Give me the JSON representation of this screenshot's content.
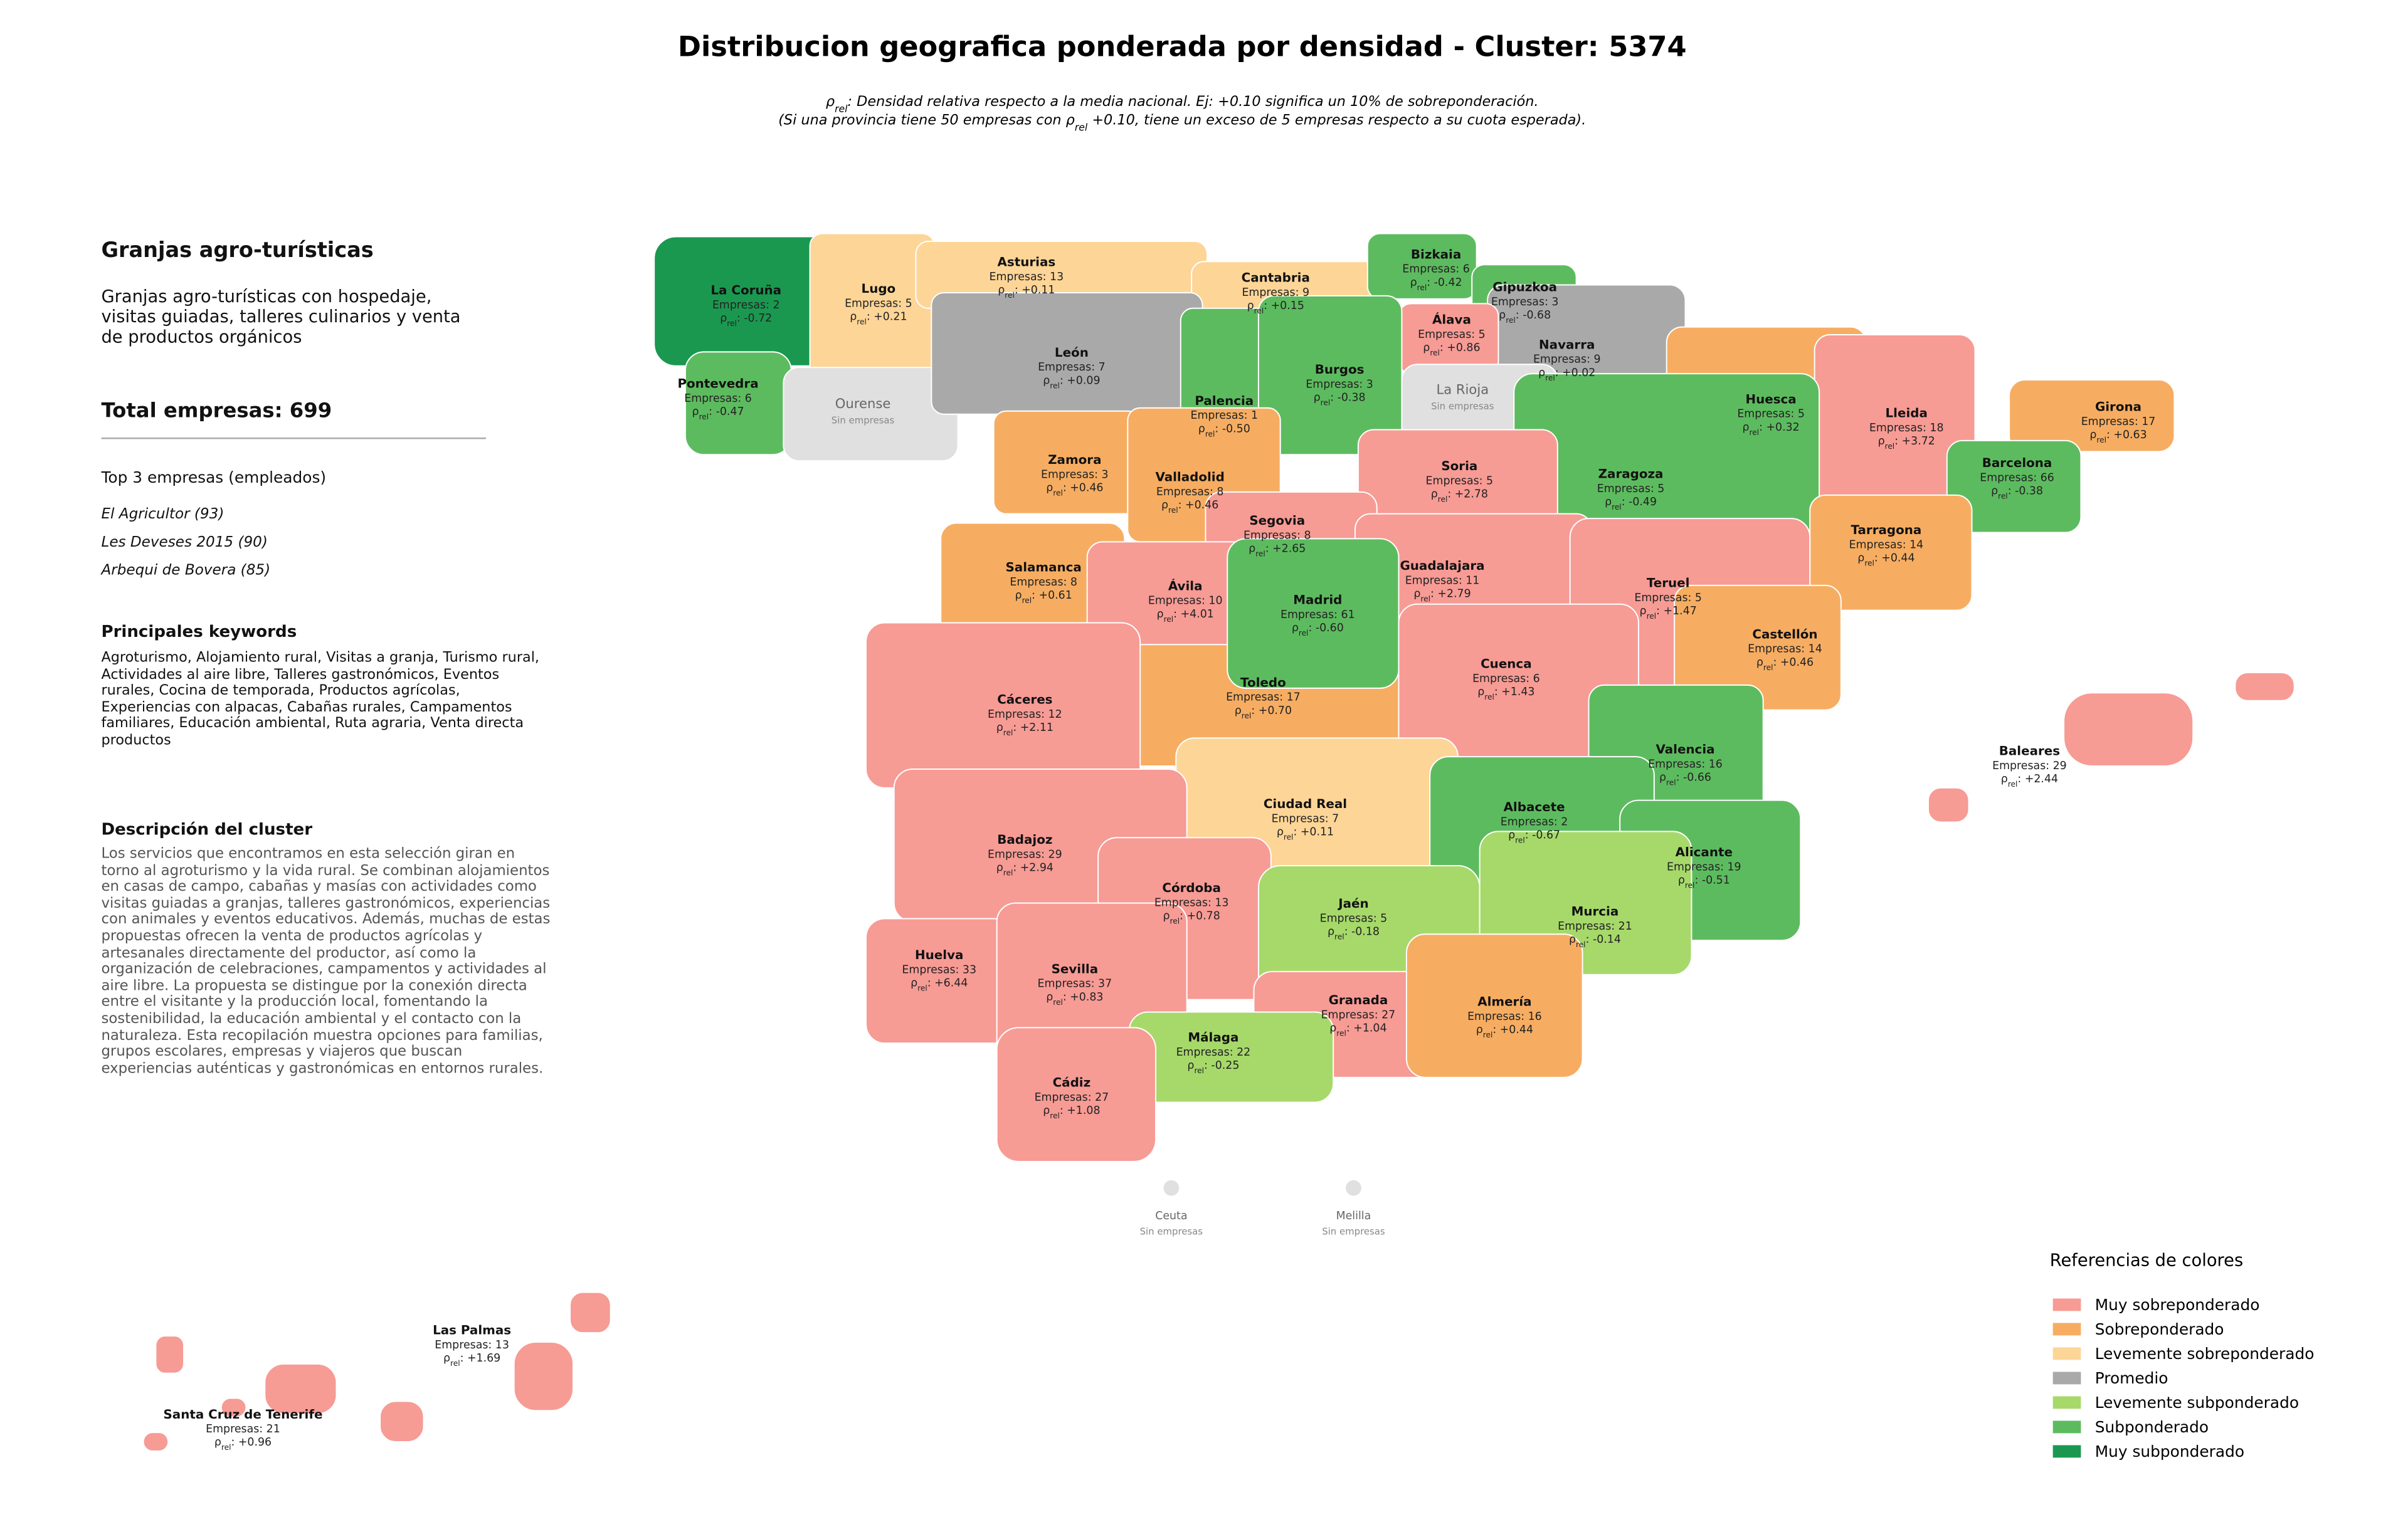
{
  "header": {
    "title": "Distribucion geografica ponderada por densidad - Cluster: 5374",
    "subtitle_lines": [
      [
        {
          "text": "ρ"
        },
        {
          "text": "rel",
          "sub": true
        },
        {
          "text": ": Densidad relativa respecto a la media nacional. Ej: +0.10 significa un 10% de sobreponderación."
        }
      ],
      [
        {
          "text": "(Si una provincia tiene 50 empresas con "
        },
        {
          "text": "ρ"
        },
        {
          "text": "rel",
          "sub": true
        },
        {
          "text": " +0.10, tiene un exceso de 5 empresas respecto a su cuota esperada)."
        }
      ]
    ]
  },
  "sidebar": {
    "cluster_name": "Granjas agro-turísticas",
    "cluster_summary": "Granjas agro-turísticas con hospedaje, visitas guiadas, talleres culinarios y venta de productos orgánicos",
    "total": "Total empresas: 699",
    "top_heading": "Top 3 empresas (empleados)",
    "top_companies": [
      "El Agricultor (93)",
      "Les Deveses 2015 (90)",
      "Arbequi de Bovera (85)"
    ],
    "keywords_heading": "Principales keywords",
    "keywords": "Agroturismo, Alojamiento rural, Visitas a granja, Turismo rural, Actividades al aire libre, Talleres gastronómicos, Eventos rurales, Cocina de temporada, Productos agrícolas, Experiencias con alpacas, Cabañas rurales, Campamentos familiares, Educación ambiental, Ruta agraria, Venta directa productos",
    "description_heading": "Descripción del cluster",
    "description": "Los servicios que encontramos en esta selección giran en torno al agroturismo y la vida rural. Se combinan alojamientos en casas de campo, cabañas y masías con actividades como visitas guiadas a granjas, talleres gastronómicos, experiencias con animales y eventos educativos. Además, muchas de estas propuestas ofrecen la venta de productos agrícolas y artesanales directamente del productor, así como la organización de celebraciones, campamentos y actividades al aire libre. La propuesta se distingue por la conexión directa entre el visitante y la producción local, fomentando la sostenibilidad, la educación ambiental y el contacto con la naturaleza. Esta recopilación muestra opciones para familias, grupos escolares, empresas y viajeros que buscan experiencias auténticas y gastronómicas en entornos rurales."
  },
  "map": {
    "rho_prefix": [
      {
        "text": "ρ"
      },
      {
        "text": "rel",
        "sub": true
      },
      {
        "text": ": "
      }
    ],
    "no_data_color": "#e0e0e0",
    "provinces": [
      {
        "name": "La Coruña",
        "empresas": "Empresas: 2",
        "rho": "-0.72",
        "category": "Muy subponderado"
      },
      {
        "name": "Lugo",
        "empresas": "Empresas: 5",
        "rho": "+0.21",
        "category": "Levemente sobreponderado"
      },
      {
        "name": "Asturias",
        "empresas": "Empresas: 13",
        "rho": "+0.11",
        "category": "Levemente sobreponderado"
      },
      {
        "name": "Cantabria",
        "empresas": "Empresas: 9",
        "rho": "+0.15",
        "category": "Levemente sobreponderado"
      },
      {
        "name": "Bizkaia",
        "empresas": "Empresas: 6",
        "rho": "-0.42",
        "category": "Subponderado"
      },
      {
        "name": "Gipuzkoa",
        "empresas": "Empresas: 3",
        "rho": "-0.68",
        "category": "Subponderado"
      },
      {
        "name": "Navarra",
        "empresas": "Empresas: 9",
        "rho": "+0.02",
        "category": "Promedio"
      },
      {
        "name": "Álava",
        "empresas": "Empresas: 5",
        "rho": "+0.86",
        "category": "Muy sobreponderado"
      },
      {
        "name": "Pontevedra",
        "empresas": "Empresas: 6",
        "rho": "-0.47",
        "category": "Subponderado"
      },
      {
        "name": "Ourense",
        "empresas": "Sin empresas",
        "rho": null,
        "category": null
      },
      {
        "name": "León",
        "empresas": "Empresas: 7",
        "rho": "+0.09",
        "category": "Promedio"
      },
      {
        "name": "Palencia",
        "empresas": "Empresas: 1",
        "rho": "-0.50",
        "category": "Subponderado"
      },
      {
        "name": "Burgos",
        "empresas": "Empresas: 3",
        "rho": "-0.38",
        "category": "Subponderado"
      },
      {
        "name": "La Rioja",
        "empresas": "Sin empresas",
        "rho": null,
        "category": null
      },
      {
        "name": "Huesca",
        "empresas": "Empresas: 5",
        "rho": "+0.32",
        "category": "Sobreponderado"
      },
      {
        "name": "Lleida",
        "empresas": "Empresas: 18",
        "rho": "+3.72",
        "category": "Muy sobreponderado"
      },
      {
        "name": "Girona",
        "empresas": "Empresas: 17",
        "rho": "+0.63",
        "category": "Sobreponderado"
      },
      {
        "name": "Barcelona",
        "empresas": "Empresas: 66",
        "rho": "-0.38",
        "category": "Subponderado"
      },
      {
        "name": "Zamora",
        "empresas": "Empresas: 3",
        "rho": "+0.46",
        "category": "Sobreponderado"
      },
      {
        "name": "Valladolid",
        "empresas": "Empresas: 8",
        "rho": "+0.46",
        "category": "Sobreponderado"
      },
      {
        "name": "Zaragoza",
        "empresas": "Empresas: 5",
        "rho": "-0.49",
        "category": "Subponderado"
      },
      {
        "name": "Soria",
        "empresas": "Empresas: 5",
        "rho": "+2.78",
        "category": "Muy sobreponderado"
      },
      {
        "name": "Tarragona",
        "empresas": "Empresas: 14",
        "rho": "+0.44",
        "category": "Sobreponderado"
      },
      {
        "name": "Segovia",
        "empresas": "Empresas: 8",
        "rho": "+2.65",
        "category": "Muy sobreponderado"
      },
      {
        "name": "Salamanca",
        "empresas": "Empresas: 8",
        "rho": "+0.61",
        "category": "Sobreponderado"
      },
      {
        "name": "Guadalajara",
        "empresas": "Empresas: 11",
        "rho": "+2.79",
        "category": "Muy sobreponderado"
      },
      {
        "name": "Ávila",
        "empresas": "Empresas: 10",
        "rho": "+4.01",
        "category": "Muy sobreponderado"
      },
      {
        "name": "Teruel",
        "empresas": "Empresas: 5",
        "rho": "+1.47",
        "category": "Muy sobreponderado"
      },
      {
        "name": "Castellón",
        "empresas": "Empresas: 14",
        "rho": "+0.46",
        "category": "Sobreponderado"
      },
      {
        "name": "Toledo",
        "empresas": "Empresas: 17",
        "rho": "+0.70",
        "category": "Sobreponderado"
      },
      {
        "name": "Madrid",
        "empresas": "Empresas: 61",
        "rho": "-0.60",
        "category": "Subponderado"
      },
      {
        "name": "Cuenca",
        "empresas": "Empresas: 6",
        "rho": "+1.43",
        "category": "Muy sobreponderado"
      },
      {
        "name": "Cáceres",
        "empresas": "Empresas: 12",
        "rho": "+2.11",
        "category": "Muy sobreponderado"
      },
      {
        "name": "Valencia",
        "empresas": "Empresas: 16",
        "rho": "-0.66",
        "category": "Subponderado"
      },
      {
        "name": "Baleares",
        "empresas": "Empresas: 29",
        "rho": "+2.44",
        "category": "Muy sobreponderado"
      },
      {
        "name": "Ciudad Real",
        "empresas": "Empresas: 7",
        "rho": "+0.11",
        "category": "Levemente sobreponderado"
      },
      {
        "name": "Albacete",
        "empresas": "Empresas: 2",
        "rho": "-0.67",
        "category": "Subponderado"
      },
      {
        "name": "Badajoz",
        "empresas": "Empresas: 29",
        "rho": "+2.94",
        "category": "Muy sobreponderado"
      },
      {
        "name": "Alicante",
        "empresas": "Empresas: 19",
        "rho": "-0.51",
        "category": "Subponderado"
      },
      {
        "name": "Córdoba",
        "empresas": "Empresas: 13",
        "rho": "+0.78",
        "category": "Muy sobreponderado"
      },
      {
        "name": "Jaén",
        "empresas": "Empresas: 5",
        "rho": "-0.18",
        "category": "Levemente subponderado"
      },
      {
        "name": "Murcia",
        "empresas": "Empresas: 21",
        "rho": "-0.14",
        "category": "Levemente subponderado"
      },
      {
        "name": "Huelva",
        "empresas": "Empresas: 33",
        "rho": "+6.44",
        "category": "Muy sobreponderado"
      },
      {
        "name": "Sevilla",
        "empresas": "Empresas: 37",
        "rho": "+0.83",
        "category": "Muy sobreponderado"
      },
      {
        "name": "Granada",
        "empresas": "Empresas: 27",
        "rho": "+1.04",
        "category": "Muy sobreponderado"
      },
      {
        "name": "Almería",
        "empresas": "Empresas: 16",
        "rho": "+0.44",
        "category": "Sobreponderado"
      },
      {
        "name": "Málaga",
        "empresas": "Empresas: 22",
        "rho": "-0.25",
        "category": "Levemente subponderado"
      },
      {
        "name": "Cádiz",
        "empresas": "Empresas: 27",
        "rho": "+1.08",
        "category": "Muy sobreponderado"
      },
      {
        "name": "Las Palmas",
        "empresas": "Empresas: 13",
        "rho": "+1.69",
        "category": "Muy sobreponderado"
      },
      {
        "name": "Santa Cruz de Tenerife",
        "empresas": "Empresas: 21",
        "rho": "+0.96",
        "category": "Muy sobreponderado"
      },
      {
        "name": "Ceuta",
        "empresas": "Sin empresas",
        "rho": null,
        "category": null
      },
      {
        "name": "Melilla",
        "empresas": "Sin empresas",
        "rho": null,
        "category": null
      }
    ]
  },
  "legend": {
    "title": "Referencias de colores",
    "entries": [
      {
        "name": "Muy sobreponderado",
        "color": "#f79b95"
      },
      {
        "name": "Sobreponderado",
        "color": "#f6ad62"
      },
      {
        "name": "Levemente sobreponderado",
        "color": "#fdd597"
      },
      {
        "name": "Promedio",
        "color": "#a9a9a9"
      },
      {
        "name": "Levemente subponderado",
        "color": "#a6d96a"
      },
      {
        "name": "Subponderado",
        "color": "#5dbb5f"
      },
      {
        "name": "Muy subponderado",
        "color": "#1a9850"
      }
    ]
  }
}
